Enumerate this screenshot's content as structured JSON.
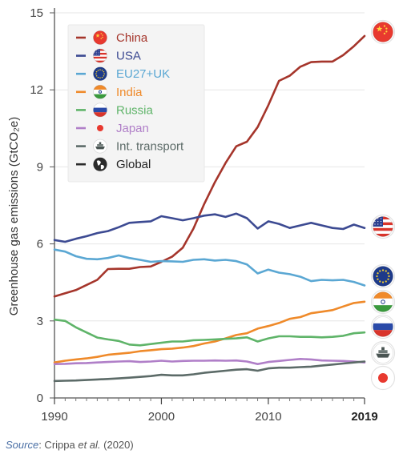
{
  "chart_data": {
    "type": "line",
    "ylabel": "Greenhouse gas emissions (GtCO₂e)",
    "xlabel": "",
    "xlim": [
      1990,
      2019
    ],
    "ylim": [
      0,
      15
    ],
    "xticks": [
      1990,
      2000,
      2010,
      2019
    ],
    "xtick_labels": [
      "1990",
      "2000",
      "2010",
      "2019"
    ],
    "yticks": [
      0,
      3,
      6,
      9,
      12,
      15
    ],
    "ytick_labels": [
      "0",
      "3",
      "6",
      "9",
      "12",
      "15"
    ],
    "grid": "horizontal",
    "legend_position": "top-left",
    "x": [
      1990,
      1991,
      1992,
      1993,
      1994,
      1995,
      1996,
      1997,
      1998,
      1999,
      2000,
      2001,
      2002,
      2003,
      2004,
      2005,
      2006,
      2007,
      2008,
      2009,
      2010,
      2011,
      2012,
      2013,
      2014,
      2015,
      2016,
      2017,
      2018,
      2019
    ],
    "series": [
      {
        "name": "China",
        "color": "#a5352b",
        "icon": "china-flag-icon",
        "values": [
          3.95,
          4.08,
          4.2,
          4.4,
          4.6,
          5.02,
          5.03,
          5.03,
          5.1,
          5.12,
          5.3,
          5.5,
          5.85,
          6.6,
          7.55,
          8.4,
          9.15,
          9.8,
          9.98,
          10.55,
          11.4,
          12.35,
          12.55,
          12.9,
          13.08,
          13.1,
          13.1,
          13.35,
          13.7,
          14.1
        ]
      },
      {
        "name": "USA",
        "color": "#3c4a92",
        "icon": "usa-flag-icon",
        "values": [
          6.15,
          6.08,
          6.2,
          6.3,
          6.42,
          6.5,
          6.65,
          6.82,
          6.85,
          6.88,
          7.08,
          7.0,
          6.92,
          7.0,
          7.1,
          7.15,
          7.05,
          7.18,
          7.0,
          6.6,
          6.88,
          6.78,
          6.62,
          6.72,
          6.82,
          6.72,
          6.62,
          6.58,
          6.75,
          6.62
        ]
      },
      {
        "name": "EU27+UK",
        "color": "#5aa7d3",
        "icon": "eu-flag-icon",
        "values": [
          5.78,
          5.7,
          5.52,
          5.42,
          5.4,
          5.45,
          5.55,
          5.45,
          5.38,
          5.3,
          5.33,
          5.32,
          5.3,
          5.38,
          5.4,
          5.35,
          5.38,
          5.33,
          5.2,
          4.85,
          5.0,
          4.88,
          4.82,
          4.72,
          4.55,
          4.6,
          4.58,
          4.6,
          4.52,
          4.38
        ]
      },
      {
        "name": "India",
        "color": "#ef8a2a",
        "icon": "india-flag-icon",
        "values": [
          1.38,
          1.45,
          1.5,
          1.54,
          1.6,
          1.68,
          1.72,
          1.76,
          1.82,
          1.86,
          1.9,
          1.92,
          1.96,
          2.02,
          2.12,
          2.2,
          2.32,
          2.45,
          2.52,
          2.7,
          2.8,
          2.92,
          3.08,
          3.15,
          3.3,
          3.36,
          3.42,
          3.56,
          3.7,
          3.75
        ]
      },
      {
        "name": "Russia",
        "color": "#5fb469",
        "icon": "russia-flag-icon",
        "values": [
          3.05,
          3.0,
          2.75,
          2.55,
          2.35,
          2.28,
          2.22,
          2.08,
          2.05,
          2.1,
          2.15,
          2.2,
          2.2,
          2.25,
          2.26,
          2.28,
          2.3,
          2.32,
          2.36,
          2.2,
          2.32,
          2.4,
          2.4,
          2.38,
          2.38,
          2.36,
          2.38,
          2.42,
          2.52,
          2.55
        ]
      },
      {
        "name": "Japan",
        "color": "#b07fc8",
        "icon": "japan-flag-icon",
        "values": [
          1.32,
          1.33,
          1.35,
          1.36,
          1.38,
          1.4,
          1.42,
          1.43,
          1.4,
          1.42,
          1.45,
          1.42,
          1.44,
          1.45,
          1.45,
          1.46,
          1.45,
          1.46,
          1.42,
          1.32,
          1.4,
          1.44,
          1.48,
          1.52,
          1.5,
          1.46,
          1.45,
          1.44,
          1.42,
          1.38
        ]
      },
      {
        "name": "Int. transport",
        "color": "#5c6b68",
        "icon": "ship-icon",
        "values": [
          0.66,
          0.67,
          0.68,
          0.7,
          0.72,
          0.74,
          0.76,
          0.79,
          0.82,
          0.85,
          0.9,
          0.88,
          0.88,
          0.92,
          0.98,
          1.02,
          1.06,
          1.1,
          1.12,
          1.06,
          1.15,
          1.18,
          1.18,
          1.2,
          1.22,
          1.26,
          1.3,
          1.34,
          1.38,
          1.42
        ]
      },
      {
        "name": "Global",
        "color": "#2b2b2b",
        "icon": "globe-icon",
        "values": [
          null,
          null,
          null,
          null,
          null,
          null,
          null,
          null,
          null,
          null,
          null,
          null,
          null,
          null,
          null,
          null,
          null,
          null,
          null,
          null,
          null,
          null,
          null,
          null,
          null,
          null,
          null,
          null,
          null,
          null
        ]
      }
    ]
  },
  "source": {
    "label": "Source",
    "text_before": ": Crippa ",
    "etal": "et al.",
    "year": " (2020)"
  }
}
